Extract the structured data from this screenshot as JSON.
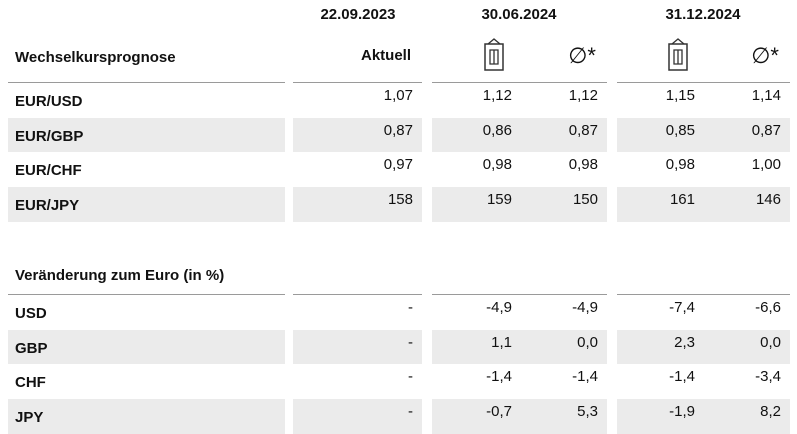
{
  "header": {
    "dates": [
      "22.09.2023",
      "30.06.2024",
      "31.12.2024"
    ],
    "columns": [
      "Aktuell",
      "∅*",
      "∅*"
    ]
  },
  "sections": [
    {
      "title": "Wechselkursprognose",
      "rows": [
        {
          "label": "EUR/USD",
          "values": [
            "1,07",
            "1,12",
            "1,12",
            "1,15",
            "1,14"
          ]
        },
        {
          "label": "EUR/GBP",
          "values": [
            "0,87",
            "0,86",
            "0,87",
            "0,85",
            "0,87"
          ]
        },
        {
          "label": "EUR/CHF",
          "values": [
            "0,97",
            "0,98",
            "0,98",
            "0,98",
            "1,00"
          ]
        },
        {
          "label": "EUR/JPY",
          "values": [
            "158",
            "159",
            "150",
            "161",
            "146"
          ]
        }
      ]
    },
    {
      "title": "Veränderung zum Euro (in %)",
      "rows": [
        {
          "label": "USD",
          "values": [
            "-",
            "-4,9",
            "-4,9",
            "-7,4",
            "-6,6"
          ]
        },
        {
          "label": "GBP",
          "values": [
            "-",
            "1,1",
            "0,0",
            "2,3",
            "0,0"
          ]
        },
        {
          "label": "CHF",
          "values": [
            "-",
            "-1,4",
            "-1,4",
            "-1,4",
            "-3,4"
          ]
        },
        {
          "label": "JPY",
          "values": [
            "-",
            "-0,7",
            "5,3",
            "-1,9",
            "8,2"
          ]
        }
      ]
    }
  ]
}
